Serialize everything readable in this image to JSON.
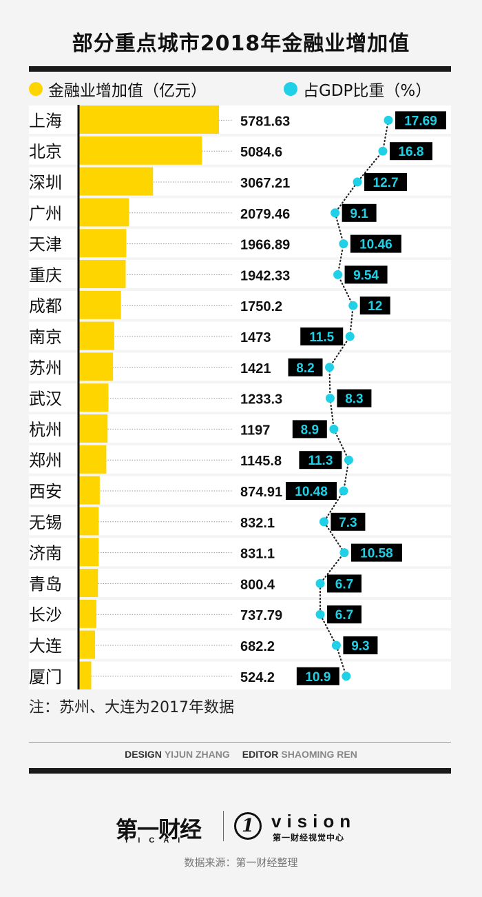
{
  "title": "部分重点城市2018年金融业增加值",
  "legend": {
    "bar_label": "金融业增加值（亿元）",
    "dot_label": "占GDP比重（%）"
  },
  "colors": {
    "bar": "#ffd500",
    "dot": "#1fd0e6",
    "label_box": "#000000",
    "label_text": "#1fd0e6"
  },
  "chart_data": {
    "type": "bar",
    "categories": [
      "上海",
      "北京",
      "深圳",
      "广州",
      "天津",
      "重庆",
      "成都",
      "南京",
      "苏州",
      "武汉",
      "杭州",
      "郑州",
      "西安",
      "无锡",
      "济南",
      "青岛",
      "长沙",
      "大连",
      "厦门"
    ],
    "series": [
      {
        "name": "金融业增加值（亿元）",
        "values": [
          5781.63,
          5084.6,
          3067.21,
          2079.46,
          1966.89,
          1942.33,
          1750.2,
          1473,
          1421,
          1233.3,
          1197,
          1145.8,
          874.91,
          832.1,
          831.1,
          800.4,
          737.79,
          682.2,
          524.2
        ],
        "labels": [
          "5781.63",
          "5084.6",
          "3067.21",
          "2079.46",
          "1966.89",
          "1942.33",
          "1750.2",
          "1473",
          "1421",
          "1233.3",
          "1197",
          "1145.8",
          "874.91",
          "832.1",
          "831.1",
          "800.4",
          "737.79",
          "682.2",
          "524.2"
        ]
      },
      {
        "name": "占GDP比重（%）",
        "type": "line",
        "values": [
          17.69,
          16.8,
          12.7,
          9.1,
          10.46,
          9.54,
          12,
          11.5,
          8.2,
          8.3,
          8.9,
          11.3,
          10.48,
          7.3,
          10.58,
          6.7,
          6.7,
          9.3,
          10.9
        ],
        "labels": [
          "17.69",
          "16.8",
          "12.7",
          "9.1",
          "10.46",
          "9.54",
          "12",
          "11.5",
          "8.2",
          "8.3",
          "8.9",
          "11.3",
          "10.48",
          "7.3",
          "10.58",
          "6.7",
          "6.7",
          "9.3",
          "10.9"
        ],
        "label_side": [
          "right",
          "right",
          "right",
          "right",
          "right",
          "right",
          "right",
          "left",
          "left",
          "right",
          "left",
          "left",
          "left",
          "right",
          "right",
          "right",
          "right",
          "right",
          "left"
        ]
      }
    ],
    "note": "注：苏州、大连为2017年数据"
  },
  "credits": {
    "design_label": "DESIGN",
    "design_name": "YIJUN ZHANG",
    "editor_label": "EDITOR",
    "editor_name": "SHAOMING REN"
  },
  "logos": {
    "logo1_text": "第一财经",
    "logo1_sub": "YICAI",
    "logo2_mark": "1",
    "logo2_word": "vision",
    "logo2_sub": "第一财经视觉中心"
  },
  "source": "数据来源：第一财经整理"
}
